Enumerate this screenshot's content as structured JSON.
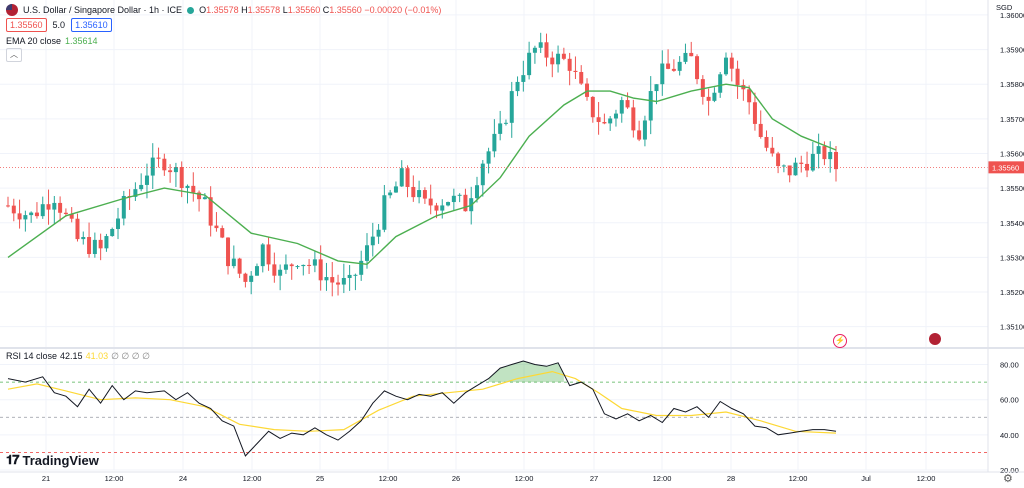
{
  "header": {
    "title": "U.S. Dollar / Singapore Dollar · 1h · ICE",
    "ohlc": {
      "o_label": "O",
      "o": "1.35578",
      "h_label": "H",
      "h": "1.35578",
      "l_label": "L",
      "l": "1.35560",
      "c_label": "C",
      "c": "1.35560",
      "change": "−0.00020 (−0.01%)"
    },
    "bid": "1.35560",
    "spread": "5.0",
    "ask": "1.35610"
  },
  "ema_label": "EMA 20 close",
  "ema_value": "1.35614",
  "rsi_label": "RSI 14 close",
  "rsi_value": "42.15",
  "rsi_ma_value": "41.03",
  "rsi_nan": "∅ ∅ ∅ ∅",
  "brand": "TradingView",
  "currency": "SGD",
  "last_price_label": "1.35560",
  "colors": {
    "up": "#26a69a",
    "down": "#ef5350",
    "ema": "#4caf50",
    "rsi": "#131722",
    "rsi_ma": "#fdd835",
    "band": "#4caf50"
  },
  "chart_data": [
    {
      "type": "candlestick",
      "title": "",
      "ylim": [
        1.3505,
        1.3602
      ],
      "y_ticks": [
        "1.36000",
        "1.35900",
        "1.35800",
        "1.35700",
        "1.35600",
        "1.35500",
        "1.35400",
        "1.35300",
        "1.35200",
        "1.35100"
      ],
      "y_tick_values": [
        1.36,
        1.359,
        1.358,
        1.357,
        1.356,
        1.355,
        1.354,
        1.353,
        1.352,
        1.351
      ],
      "x_ticks": [
        "21",
        "12:00",
        "24",
        "12:00",
        "25",
        "12:00",
        "26",
        "12:00",
        "27",
        "12:00",
        "28",
        "12:00",
        "Jul",
        "12:00"
      ],
      "last_price": 1.3556,
      "close_path": [
        [
          0,
          1.3545
        ],
        [
          4,
          1.3542
        ],
        [
          8,
          1.3548
        ],
        [
          12,
          1.3535
        ],
        [
          16,
          1.3532
        ],
        [
          20,
          1.3545
        ],
        [
          24,
          1.3555
        ],
        [
          27,
          1.3558
        ],
        [
          30,
          1.3553
        ],
        [
          34,
          1.3545
        ],
        [
          38,
          1.353
        ],
        [
          41,
          1.3523
        ],
        [
          44,
          1.3533
        ],
        [
          47,
          1.3525
        ],
        [
          50,
          1.353
        ],
        [
          53,
          1.3527
        ],
        [
          56,
          1.3523
        ],
        [
          59,
          1.3522
        ],
        [
          62,
          1.3532
        ],
        [
          65,
          1.3545
        ],
        [
          68,
          1.3553
        ],
        [
          72,
          1.3545
        ],
        [
          76,
          1.3547
        ],
        [
          79,
          1.3545
        ],
        [
          82,
          1.3558
        ],
        [
          85,
          1.3566
        ],
        [
          88,
          1.3582
        ],
        [
          91,
          1.359
        ],
        [
          94,
          1.3588
        ],
        [
          97,
          1.3586
        ],
        [
          100,
          1.3574
        ],
        [
          103,
          1.3568
        ],
        [
          106,
          1.3575
        ],
        [
          109,
          1.3567
        ],
        [
          112,
          1.3582
        ],
        [
          115,
          1.3585
        ],
        [
          118,
          1.3587
        ],
        [
          121,
          1.3575
        ],
        [
          124,
          1.359
        ],
        [
          126,
          1.358
        ],
        [
          128,
          1.3575
        ],
        [
          130,
          1.3565
        ],
        [
          133,
          1.3555
        ],
        [
          135,
          1.3555
        ],
        [
          138,
          1.3558
        ],
        [
          141,
          1.356
        ],
        [
          143,
          1.3556
        ]
      ],
      "ema": {
        "name": "EMA 20 close",
        "values": [
          [
            0,
            1.353
          ],
          [
            10,
            1.3542
          ],
          [
            20,
            1.3547
          ],
          [
            27,
            1.355
          ],
          [
            34,
            1.3548
          ],
          [
            42,
            1.3537
          ],
          [
            50,
            1.3534
          ],
          [
            57,
            1.3529
          ],
          [
            62,
            1.3528
          ],
          [
            67,
            1.3536
          ],
          [
            74,
            1.3542
          ],
          [
            80,
            1.3545
          ],
          [
            85,
            1.3553
          ],
          [
            90,
            1.3565
          ],
          [
            96,
            1.3574
          ],
          [
            100,
            1.3578
          ],
          [
            104,
            1.3578
          ],
          [
            108,
            1.3576
          ],
          [
            112,
            1.3575
          ],
          [
            118,
            1.3578
          ],
          [
            124,
            1.358
          ],
          [
            128,
            1.3579
          ],
          [
            132,
            1.357
          ],
          [
            137,
            1.3565
          ],
          [
            143,
            1.3561
          ]
        ]
      }
    },
    {
      "type": "line",
      "title": "",
      "ylim": [
        20,
        86
      ],
      "y_ticks": [
        "80.00",
        "60.00",
        "40.00",
        "20.00"
      ],
      "y_tick_values": [
        80,
        60,
        40,
        20
      ],
      "bands": [
        70,
        50,
        30
      ],
      "series": [
        {
          "name": "RSI 14 close",
          "values": [
            [
              0,
              72
            ],
            [
              3,
              70
            ],
            [
              6,
              73
            ],
            [
              8,
              64
            ],
            [
              10,
              62
            ],
            [
              12,
              56
            ],
            [
              14,
              66
            ],
            [
              16,
              58
            ],
            [
              18,
              68
            ],
            [
              20,
              60
            ],
            [
              22,
              65
            ],
            [
              24,
              64
            ],
            [
              27,
              65
            ],
            [
              29,
              60
            ],
            [
              31,
              64
            ],
            [
              33,
              58
            ],
            [
              35,
              55
            ],
            [
              37,
              48
            ],
            [
              39,
              45
            ],
            [
              41,
              28
            ],
            [
              43,
              35
            ],
            [
              45,
              42
            ],
            [
              47,
              38
            ],
            [
              49,
              41
            ],
            [
              51,
              40
            ],
            [
              53,
              44
            ],
            [
              55,
              40
            ],
            [
              57,
              37
            ],
            [
              59,
              42
            ],
            [
              61,
              48
            ],
            [
              63,
              58
            ],
            [
              65,
              65
            ],
            [
              67,
              62
            ],
            [
              69,
              60
            ],
            [
              71,
              63
            ],
            [
              73,
              62
            ],
            [
              75,
              64
            ],
            [
              77,
              58
            ],
            [
              79,
              64
            ],
            [
              81,
              68
            ],
            [
              83,
              72
            ],
            [
              85,
              78
            ],
            [
              87,
              80
            ],
            [
              89,
              82
            ],
            [
              91,
              80
            ],
            [
              93,
              79
            ],
            [
              95,
              81
            ],
            [
              97,
              68
            ],
            [
              99,
              70
            ],
            [
              101,
              66
            ],
            [
              103,
              52
            ],
            [
              105,
              49
            ],
            [
              107,
              52
            ],
            [
              109,
              48
            ],
            [
              111,
              51
            ],
            [
              113,
              47
            ],
            [
              115,
              55
            ],
            [
              117,
              53
            ],
            [
              119,
              56
            ],
            [
              121,
              50
            ],
            [
              123,
              59
            ],
            [
              125,
              55
            ],
            [
              127,
              52
            ],
            [
              129,
              45
            ],
            [
              131,
              44
            ],
            [
              133,
              40
            ],
            [
              135,
              41
            ],
            [
              137,
              42
            ],
            [
              139,
              43
            ],
            [
              141,
              43
            ],
            [
              143,
              42
            ]
          ]
        },
        {
          "name": "RSI MA",
          "values": [
            [
              0,
              66
            ],
            [
              5,
              69
            ],
            [
              10,
              65
            ],
            [
              16,
              60
            ],
            [
              22,
              61
            ],
            [
              28,
              60
            ],
            [
              34,
              56
            ],
            [
              40,
              46
            ],
            [
              46,
              43
            ],
            [
              52,
              42
            ],
            [
              58,
              43
            ],
            [
              64,
              54
            ],
            [
              70,
              62
            ],
            [
              76,
              64
            ],
            [
              82,
              66
            ],
            [
              88,
              72
            ],
            [
              94,
              76
            ],
            [
              98,
              72
            ],
            [
              102,
              64
            ],
            [
              106,
              55
            ],
            [
              112,
              51
            ],
            [
              118,
              51
            ],
            [
              124,
              53
            ],
            [
              130,
              48
            ],
            [
              136,
              42
            ],
            [
              143,
              41
            ]
          ]
        }
      ]
    }
  ]
}
